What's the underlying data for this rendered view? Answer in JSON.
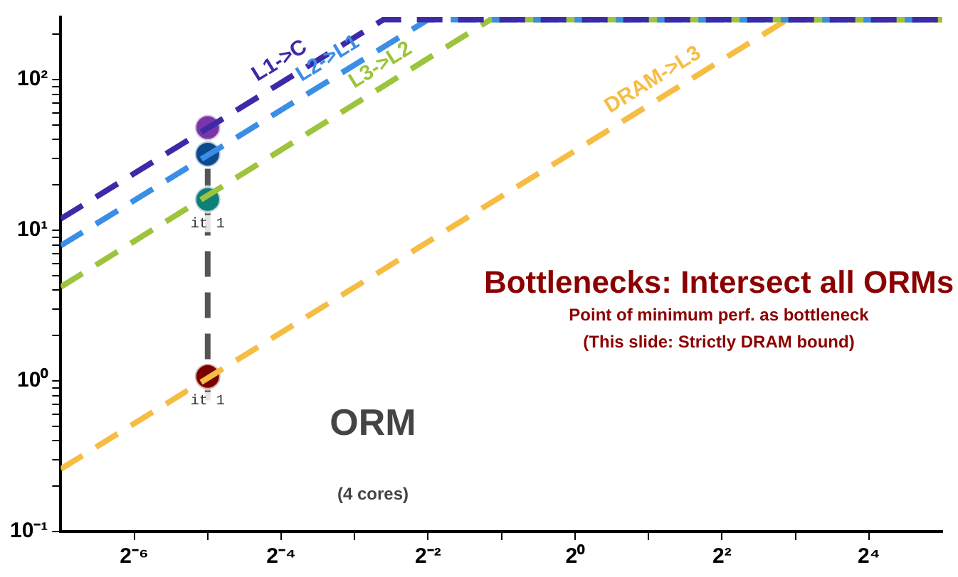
{
  "chart_data": {
    "type": "line",
    "log": "xy",
    "grid": false,
    "legend": false,
    "line_style": "dashed",
    "marker": "none",
    "xlim": [
      0.0078125,
      32
    ],
    "ylim": [
      0.1,
      260
    ],
    "xticks": [
      {
        "value": 0.015625,
        "label": "2⁻⁶"
      },
      {
        "value": 0.03125,
        "label": null
      },
      {
        "value": 0.0625,
        "label": "2⁻⁴"
      },
      {
        "value": 0.125,
        "label": null
      },
      {
        "value": 0.25,
        "label": "2⁻²"
      },
      {
        "value": 0.5,
        "label": null
      },
      {
        "value": 1,
        "label": "2⁰"
      },
      {
        "value": 2,
        "label": null
      },
      {
        "value": 4,
        "label": "2²"
      },
      {
        "value": 8,
        "label": null
      },
      {
        "value": 16,
        "label": "2⁴"
      }
    ],
    "yticks": [
      {
        "value": 0.1,
        "label": "10⁻¹"
      },
      {
        "value": 0.2,
        "label": null
      },
      {
        "value": 0.3,
        "label": null
      },
      {
        "value": 0.4,
        "label": null
      },
      {
        "value": 0.5,
        "label": null
      },
      {
        "value": 0.6,
        "label": null
      },
      {
        "value": 0.7,
        "label": null
      },
      {
        "value": 0.8,
        "label": null
      },
      {
        "value": 0.9,
        "label": null
      },
      {
        "value": 1,
        "label": "10⁰"
      },
      {
        "value": 2,
        "label": null
      },
      {
        "value": 3,
        "label": null
      },
      {
        "value": 4,
        "label": null
      },
      {
        "value": 5,
        "label": null
      },
      {
        "value": 6,
        "label": null
      },
      {
        "value": 7,
        "label": null
      },
      {
        "value": 8,
        "label": null
      },
      {
        "value": 9,
        "label": null
      },
      {
        "value": 10,
        "label": "10¹"
      },
      {
        "value": 20,
        "label": null
      },
      {
        "value": 30,
        "label": null
      },
      {
        "value": 40,
        "label": null
      },
      {
        "value": 50,
        "label": null
      },
      {
        "value": 60,
        "label": null
      },
      {
        "value": 70,
        "label": null
      },
      {
        "value": 80,
        "label": null
      },
      {
        "value": 90,
        "label": null
      },
      {
        "value": 100,
        "label": "10²"
      },
      {
        "value": 200,
        "label": null
      }
    ],
    "series": [
      {
        "name": "L1->C",
        "color": "#3d2aa8",
        "x": [
          0.0078125,
          0.164,
          32
        ],
        "values": [
          11.9,
          250,
          250
        ]
      },
      {
        "name": "L2->L1",
        "color": "#3a8ee6",
        "x": [
          0.0078125,
          0.25,
          32
        ],
        "values": [
          7.9,
          250,
          250
        ]
      },
      {
        "name": "L3->L2",
        "color": "#9cc43c",
        "x": [
          0.0078125,
          0.45,
          32
        ],
        "values": [
          4.2,
          250,
          250
        ]
      },
      {
        "name": "DRAM->L3",
        "color": "#f6bd45",
        "x": [
          0.0078125,
          7.4,
          32
        ],
        "values": [
          0.26,
          250,
          250
        ]
      },
      {
        "type": "scatter",
        "marker": "circle",
        "x": [
          0.03125,
          0.03125,
          0.03125,
          0.03125
        ],
        "values": [
          48,
          32,
          16,
          1.07
        ],
        "colors": [
          "#7b35a8",
          "#0d4a8c",
          "#0f7f7a",
          "#7a0000"
        ]
      },
      {
        "color": "#555555",
        "line_style": "dashed",
        "x": [
          0.03125,
          0.03125
        ],
        "values": [
          48,
          0.65
        ]
      }
    ],
    "annotations": [
      "Bottlenecks: Intersect all ORMs",
      "Point of minimum perf. as bottleneck",
      "(This slide: Strictly DRAM bound)",
      "ORM",
      "(4 cores)",
      {
        "text": "it 1",
        "x": 0.03125,
        "y": 16
      },
      {
        "text": "it 1",
        "x": 0.03125,
        "y": 1.07
      }
    ]
  }
}
